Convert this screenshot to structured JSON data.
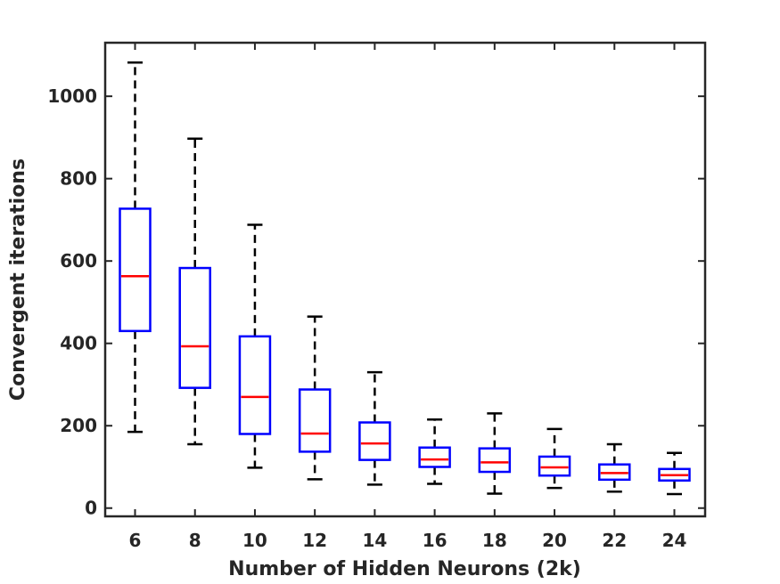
{
  "chart_data": {
    "type": "box",
    "xlabel": "Number of Hidden Neurons (2k)",
    "ylabel": "Convergent iterations",
    "ylim": [
      -20,
      1130
    ],
    "yticks": [
      0,
      200,
      400,
      600,
      800,
      1000
    ],
    "categories": [
      "6",
      "8",
      "10",
      "12",
      "14",
      "16",
      "18",
      "20",
      "22",
      "24"
    ],
    "boxes": [
      {
        "min": 185,
        "q1": 430,
        "median": 563,
        "q3": 727,
        "max": 1082
      },
      {
        "min": 155,
        "q1": 292,
        "median": 393,
        "q3": 583,
        "max": 897
      },
      {
        "min": 98,
        "q1": 180,
        "median": 270,
        "q3": 417,
        "max": 688
      },
      {
        "min": 70,
        "q1": 137,
        "median": 181,
        "q3": 288,
        "max": 465
      },
      {
        "min": 57,
        "q1": 117,
        "median": 157,
        "q3": 208,
        "max": 330
      },
      {
        "min": 59,
        "q1": 100,
        "median": 118,
        "q3": 147,
        "max": 215
      },
      {
        "min": 35,
        "q1": 88,
        "median": 111,
        "q3": 145,
        "max": 230
      },
      {
        "min": 49,
        "q1": 79,
        "median": 99,
        "q3": 125,
        "max": 192
      },
      {
        "min": 40,
        "q1": 69,
        "median": 85,
        "q3": 106,
        "max": 155
      },
      {
        "min": 34,
        "q1": 67,
        "median": 80,
        "q3": 95,
        "max": 134
      }
    ],
    "colors": {
      "box": "#0000ff",
      "median": "#ff0000",
      "whisker": "#000000",
      "axis": "#262626"
    },
    "grid": false
  }
}
